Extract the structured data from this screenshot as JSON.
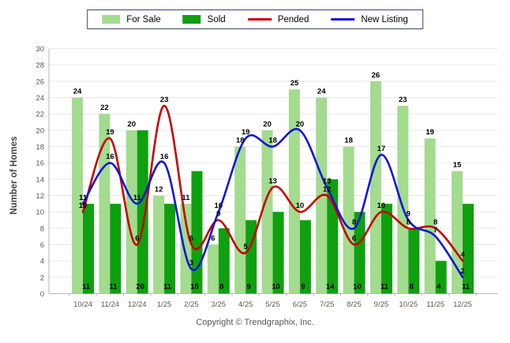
{
  "legend": {
    "items": [
      {
        "label": "For Sale",
        "type": "bar",
        "color": "#A3DB8F"
      },
      {
        "label": "Sold",
        "type": "bar",
        "color": "#0FA00F"
      },
      {
        "label": "Pended",
        "type": "line",
        "color": "#C80000"
      },
      {
        "label": "New Listing",
        "type": "line",
        "color": "#1414D6"
      }
    ]
  },
  "chart_data": {
    "type": "combo",
    "categories": [
      "10/24",
      "11/24",
      "12/24",
      "1/25",
      "2/25",
      "3/25",
      "4/25",
      "5/25",
      "6/25",
      "7/25",
      "8/25",
      "9/25",
      "10/25",
      "11/25",
      "12/25"
    ],
    "series": [
      {
        "name": "For Sale",
        "type": "bar",
        "color": "#A3DB8F",
        "values": [
          24,
          22,
          20,
          12,
          11,
          6,
          18,
          20,
          25,
          24,
          18,
          26,
          23,
          19,
          15
        ]
      },
      {
        "name": "Sold",
        "type": "bar",
        "color": "#0FA00F",
        "values": [
          11,
          11,
          20,
          11,
          15,
          8,
          9,
          10,
          9,
          14,
          10,
          11,
          8,
          4,
          11
        ]
      },
      {
        "name": "Pended",
        "type": "line",
        "color": "#C80000",
        "values": [
          10,
          19,
          6,
          23,
          6,
          9,
          5,
          13,
          10,
          12,
          6,
          10,
          8,
          8,
          4
        ]
      },
      {
        "name": "New Listing",
        "type": "line",
        "color": "#1414D6",
        "values": [
          11,
          16,
          11,
          16,
          3,
          10,
          19,
          18,
          20,
          13,
          8,
          17,
          9,
          7,
          2
        ]
      }
    ],
    "title": "",
    "xlabel": "",
    "ylabel": "Number of Homes",
    "ylim": [
      0,
      30
    ],
    "yticks": [
      0,
      2,
      4,
      6,
      8,
      10,
      12,
      14,
      16,
      18,
      20,
      22,
      24,
      26,
      28,
      30
    ],
    "grid": true,
    "legend_position": "top",
    "data_labels": true
  },
  "footer": {
    "copyright": "Copyright © Trendgraphix, Inc."
  },
  "colors": {
    "background": "#FFFFFF",
    "gridline": "#E9E9E9",
    "axis": "#B5B5B5",
    "tick_text": "#5C574E",
    "value_label": "#000000",
    "legend_border": "#41416B"
  }
}
